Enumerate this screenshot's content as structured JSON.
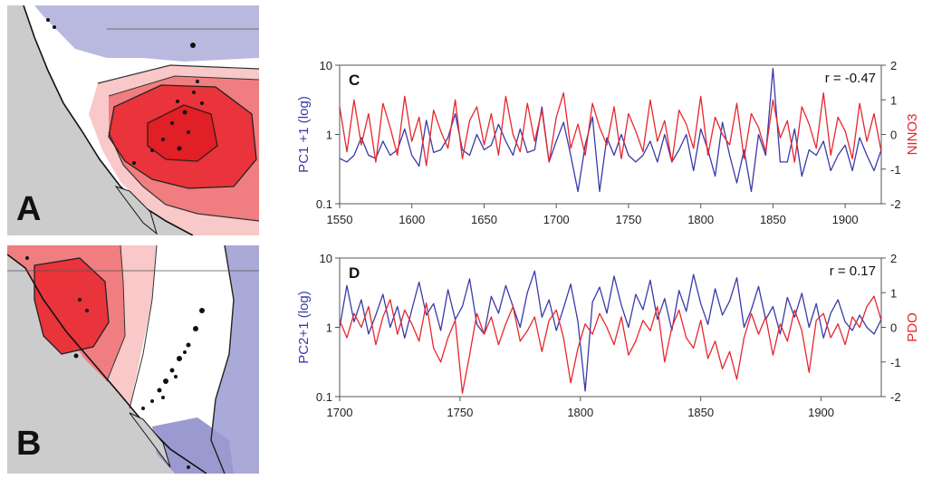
{
  "panels": {
    "a": {
      "letter": "A"
    },
    "b": {
      "letter": "B"
    }
  },
  "colors": {
    "pc_series": "#3a3aa8",
    "index_series": "#e8262e",
    "land": "#cccccc",
    "map_blue": "#aaaad8",
    "map_red_dark": "#e8343a",
    "map_red_mid": "#f07d7f",
    "map_red_light": "#f9c8c8"
  },
  "chart_data": [
    {
      "type": "line",
      "panel_letter": "C",
      "annotation": "r = -0.47",
      "left_axis": {
        "label": "PC1 +1 (log)",
        "scale": "log",
        "range": [
          0.1,
          10
        ],
        "ticks": [
          "0.1",
          "1",
          "10"
        ]
      },
      "right_axis": {
        "label": "NINO3",
        "range": [
          -2,
          2
        ],
        "ticks": [
          "-2",
          "-1",
          "0",
          "1",
          "2"
        ]
      },
      "x_axis": {
        "range": [
          1550,
          1925
        ],
        "ticks": [
          "1550",
          "1600",
          "1650",
          "1700",
          "1750",
          "1800",
          "1850",
          "1900"
        ]
      },
      "series": [
        {
          "axis": "left",
          "x_start": 1550,
          "x_step": 5,
          "values": [
            0.45,
            0.4,
            0.5,
            0.9,
            0.5,
            0.45,
            0.8,
            0.5,
            0.6,
            1.2,
            0.5,
            0.35,
            1.6,
            0.55,
            0.6,
            0.9,
            2.0,
            0.6,
            0.5,
            1.0,
            0.6,
            0.7,
            1.4,
            0.8,
            0.5,
            1.2,
            0.55,
            0.6,
            2.5,
            0.4,
            0.8,
            1.5,
            0.5,
            0.15,
            0.7,
            1.8,
            0.15,
            0.9,
            0.5,
            1.0,
            0.5,
            0.4,
            0.5,
            0.8,
            0.4,
            1.0,
            0.4,
            0.6,
            1.0,
            0.3,
            1.2,
            0.6,
            0.25,
            1.5,
            0.5,
            0.2,
            0.6,
            0.15,
            1.0,
            0.5,
            9.0,
            0.4,
            0.4,
            1.2,
            0.25,
            0.6,
            0.5,
            0.8,
            0.3,
            0.5,
            0.7,
            0.3,
            0.9,
            0.5,
            0.3,
            0.6
          ]
        },
        {
          "axis": "right",
          "x_start": 1550,
          "x_step": 5,
          "values": [
            0.8,
            -0.5,
            1.0,
            -0.3,
            0.6,
            -0.8,
            0.9,
            0.2,
            -0.6,
            1.1,
            -0.2,
            0.5,
            -0.9,
            0.7,
            0.1,
            -0.4,
            1.0,
            -0.7,
            0.4,
            0.8,
            -0.3,
            0.6,
            -0.6,
            1.1,
            0.0,
            -0.5,
            0.9,
            -0.2,
            0.7,
            -0.8,
            0.5,
            1.2,
            -0.4,
            0.3,
            -0.6,
            0.9,
            0.2,
            -0.3,
            0.8,
            -0.7,
            0.6,
            0.1,
            -0.5,
            1.0,
            -0.2,
            0.4,
            -0.8,
            0.7,
            0.3,
            -0.4,
            1.1,
            -0.6,
            0.5,
            0.0,
            -0.3,
            0.9,
            -0.7,
            0.6,
            0.2,
            -0.5,
            1.0,
            -0.1,
            0.4,
            -0.8,
            0.8,
            0.3,
            -0.4,
            1.2,
            -0.6,
            0.5,
            0.1,
            -0.7,
            0.9,
            -0.2,
            0.6,
            -0.5
          ]
        }
      ]
    },
    {
      "type": "line",
      "panel_letter": "D",
      "annotation": "r = 0.17",
      "left_axis": {
        "label": "PC2+1 (log)",
        "scale": "log",
        "range": [
          0.1,
          10
        ],
        "ticks": [
          "0.1",
          "1",
          "10"
        ]
      },
      "right_axis": {
        "label": "PDO",
        "range": [
          -2,
          2
        ],
        "ticks": [
          "-2",
          "-1",
          "0",
          "1",
          "2"
        ]
      },
      "x_axis": {
        "range": [
          1700,
          1925
        ],
        "ticks": [
          "1700",
          "1750",
          "1800",
          "1850",
          "1900"
        ]
      },
      "series": [
        {
          "axis": "left",
          "x_start": 1700,
          "x_step": 3,
          "values": [
            1.0,
            4.0,
            1.2,
            2.5,
            0.8,
            1.5,
            3.0,
            1.0,
            2.0,
            0.7,
            1.8,
            4.5,
            1.5,
            2.2,
            0.9,
            3.5,
            1.3,
            2.0,
            5.0,
            1.1,
            0.8,
            2.8,
            1.6,
            4.0,
            2.0,
            1.0,
            3.2,
            6.5,
            1.4,
            2.5,
            0.9,
            1.9,
            4.2,
            1.2,
            0.12,
            2.3,
            3.8,
            1.6,
            5.5,
            2.1,
            1.0,
            3.0,
            1.8,
            4.8,
            1.3,
            2.6,
            0.9,
            3.4,
            1.7,
            5.8,
            2.2,
            1.1,
            3.6,
            1.5,
            2.4,
            5.2,
            1.0,
            1.8,
            3.9,
            1.3,
            2.0,
            0.8,
            2.7,
            1.4,
            3.1,
            1.0,
            2.2,
            0.7,
            1.6,
            2.5,
            1.2,
            0.9,
            1.5,
            1.0,
            0.8,
            1.3
          ]
        },
        {
          "axis": "right",
          "x_start": 1700,
          "x_step": 3,
          "values": [
            0.2,
            -0.3,
            0.4,
            0.0,
            0.6,
            -0.5,
            0.3,
            0.8,
            -0.2,
            0.5,
            0.1,
            -0.4,
            0.7,
            -0.6,
            -1.0,
            -0.3,
            0.2,
            -1.9,
            -0.8,
            0.4,
            -0.2,
            0.3,
            -0.5,
            0.1,
            0.6,
            -0.4,
            -0.1,
            0.3,
            -0.7,
            0.2,
            0.5,
            -0.3,
            -1.6,
            -0.6,
            0.1,
            -0.2,
            0.4,
            0.0,
            -0.5,
            0.3,
            -0.8,
            -0.4,
            0.2,
            -0.1,
            0.6,
            -1.0,
            0.0,
            0.5,
            -0.3,
            -0.6,
            0.2,
            -0.9,
            -0.4,
            -1.2,
            -0.7,
            -1.5,
            -0.3,
            0.4,
            -0.2,
            0.3,
            -0.8,
            0.1,
            -0.4,
            0.5,
            -0.1,
            -1.3,
            0.2,
            0.4,
            -0.3,
            0.1,
            -0.5,
            0.3,
            0.0,
            0.6,
            0.9,
            0.2
          ]
        }
      ]
    }
  ]
}
